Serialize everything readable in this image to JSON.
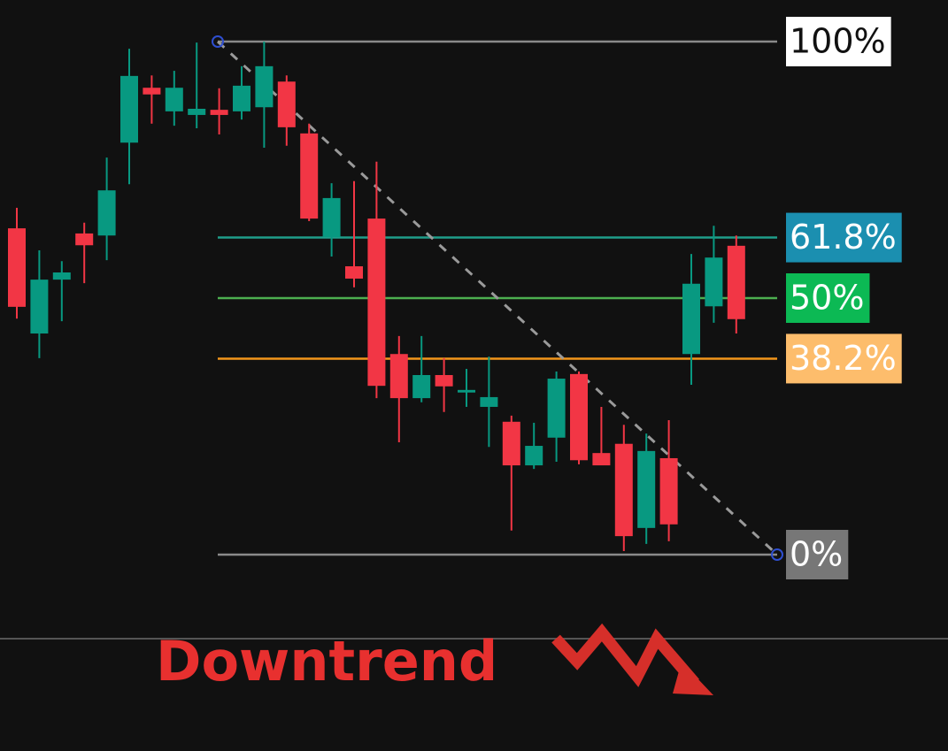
{
  "chart_data": {
    "type": "candlestick",
    "up_color": "#089981",
    "down_color": "#f23645",
    "candles": {
      "open": [
        63.6,
        43.1,
        53.6,
        62.6,
        62.2,
        80.3,
        91.0,
        86.4,
        85.7,
        86.7,
        86.4,
        87.2,
        92.2,
        82.1,
        61.9,
        56.2,
        65.5,
        39.1,
        30.5,
        35.0,
        31.6,
        28.8,
        25.9,
        17.4,
        22.8,
        35.2,
        19.8,
        21.6,
        5.2,
        18.8,
        39.1,
        48.4,
        60.2
      ],
      "high": [
        67.6,
        59.3,
        57.2,
        64.7,
        77.4,
        98.6,
        93.4,
        94.3,
        99.8,
        90.9,
        95.2,
        100,
        93.4,
        84.0,
        72.4,
        72.8,
        76.6,
        42.6,
        42.6,
        38.3,
        36.2,
        38.6,
        27.1,
        25.7,
        35.7,
        35.7,
        28.8,
        25.3,
        23.6,
        26.2,
        58.6,
        64.1,
        62.2
      ],
      "low": [
        46.0,
        38.3,
        45.5,
        52.9,
        57.4,
        72.2,
        84.0,
        83.6,
        83.1,
        81.9,
        84.8,
        79.3,
        79.7,
        65.0,
        58.1,
        52.1,
        30.5,
        21.9,
        29.7,
        27.8,
        28.8,
        21.0,
        4.7,
        16.7,
        18.1,
        17.6,
        17.6,
        0.7,
        2.1,
        2.6,
        33.1,
        45.2,
        43.1
      ],
      "close": [
        48.3,
        53.6,
        55.0,
        60.3,
        71.0,
        93.3,
        89.7,
        91.0,
        86.9,
        85.7,
        91.4,
        95.2,
        83.3,
        65.5,
        69.5,
        53.8,
        32.9,
        30.5,
        35.0,
        32.8,
        32.1,
        30.7,
        17.4,
        21.2,
        34.3,
        18.4,
        17.4,
        3.6,
        20.2,
        5.9,
        52.8,
        57.9,
        45.9
      ]
    },
    "fib_levels": [
      {
        "value": 100,
        "label": "100%",
        "color": "#8a8a8a",
        "label_bg": "#ffffff",
        "label_color": "#111111"
      },
      {
        "value": 61.8,
        "label": "61.8%",
        "color": "#1f9e8a",
        "label_bg": "#1b8fb0",
        "label_color": "#ffffff"
      },
      {
        "value": 50,
        "label": "50%",
        "color": "#4caf50",
        "label_bg": "#0cb954",
        "label_color": "#ffffff"
      },
      {
        "value": 38.2,
        "label": "38.2%",
        "color": "#f2961b",
        "label_bg": "#fdbd6c",
        "label_color": "#ffffff"
      },
      {
        "value": 0,
        "label": "0%",
        "color": "#8a8a8a",
        "label_bg": "#777777",
        "label_color": "#ffffff"
      }
    ],
    "annotation": "Downtrend"
  }
}
